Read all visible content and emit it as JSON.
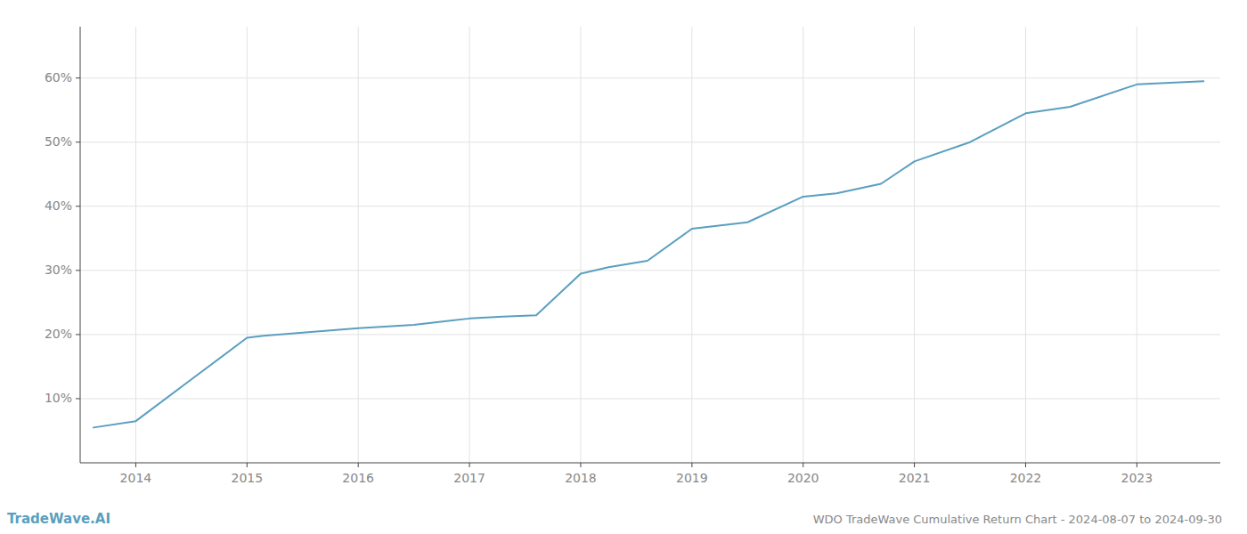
{
  "chart_data": {
    "type": "line",
    "title": "WDO TradeWave Cumulative Return Chart - 2024-08-07 to 2024-09-30",
    "annotations": [
      "TradeWave.AI"
    ],
    "color": "#5a9fc0",
    "x": [
      2013.62,
      2014.0,
      2014.5,
      2015.0,
      2015.15,
      2015.5,
      2016.0,
      2016.5,
      2017.0,
      2017.3,
      2017.6,
      2018.0,
      2018.25,
      2018.6,
      2019.0,
      2019.5,
      2020.0,
      2020.3,
      2020.7,
      2021.0,
      2021.5,
      2022.0,
      2022.4,
      2023.0,
      2023.6
    ],
    "values": [
      5.5,
      6.5,
      13.0,
      19.5,
      19.8,
      20.3,
      21.0,
      21.5,
      22.5,
      22.8,
      23.0,
      29.5,
      30.5,
      31.5,
      36.5,
      37.5,
      41.5,
      42.0,
      43.5,
      47.0,
      50.0,
      54.5,
      55.5,
      59.0,
      59.5
    ],
    "xlim": [
      2013.5,
      2023.75
    ],
    "ylim": [
      0,
      68
    ],
    "xticks": [
      2014,
      2015,
      2016,
      2017,
      2018,
      2019,
      2020,
      2021,
      2022,
      2023
    ],
    "yticks": [
      {
        "value": 10,
        "label": "10%"
      },
      {
        "value": 20,
        "label": "20%"
      },
      {
        "value": 30,
        "label": "30%"
      },
      {
        "value": 40,
        "label": "40%"
      },
      {
        "value": 50,
        "label": "50%"
      },
      {
        "value": 60,
        "label": "60%"
      }
    ],
    "grid": true
  }
}
